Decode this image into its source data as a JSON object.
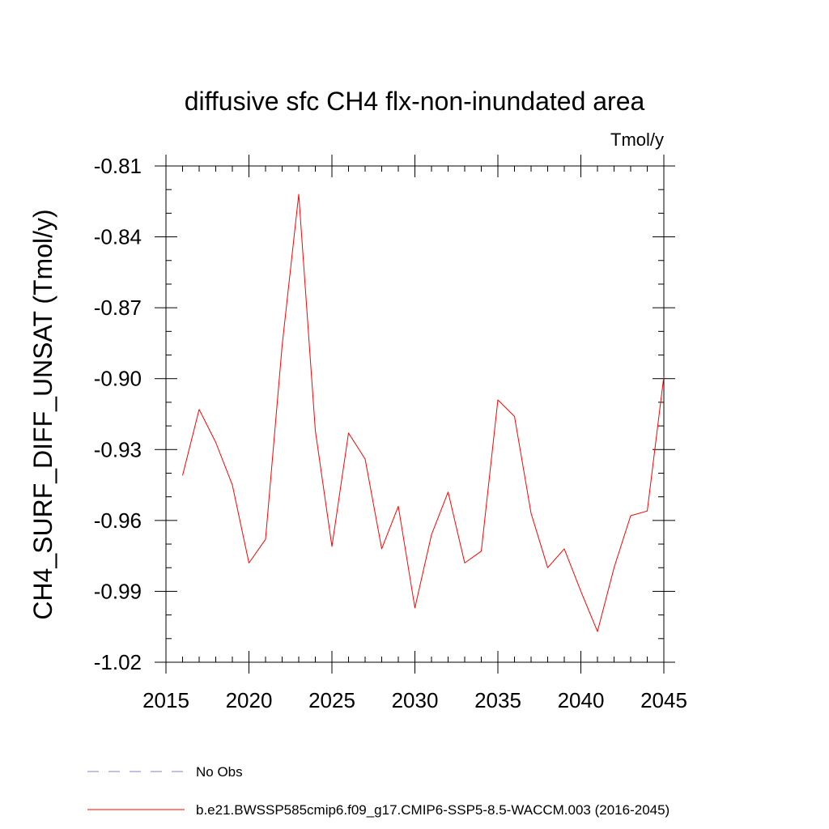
{
  "chart_data": {
    "type": "line",
    "title": "diffusive sfc CH4 flx-non-inundated area",
    "units_label": "Tmol/y",
    "ylabel": "CH4_SURF_DIFF_UNSAT  (Tmol/y)",
    "xlabel": "",
    "xlim": [
      2015,
      2045
    ],
    "ylim": [
      -1.02,
      -0.81
    ],
    "x_ticks": [
      2015,
      2020,
      2025,
      2030,
      2035,
      2040,
      2045
    ],
    "x_tick_labels": [
      "2015",
      "2020",
      "2025",
      "2030",
      "2035",
      "2040",
      "2045"
    ],
    "x_minor_step": 1,
    "y_ticks": [
      -1.02,
      -0.99,
      -0.96,
      -0.93,
      -0.9,
      -0.87,
      -0.84,
      -0.81
    ],
    "y_tick_labels": [
      "-1.02",
      "-0.99",
      "-0.96",
      "-0.93",
      "-0.90",
      "-0.87",
      "-0.84",
      "-0.81"
    ],
    "y_minor_step": 0.01,
    "grid": false,
    "series": [
      {
        "name": "b.e21.BWSSP585cmip6.f09_g17.CMIP6-SSP5-8.5-WACCM.003 (2016-2045)",
        "color": "#ff0000",
        "style": "solid",
        "x": [
          2016,
          2017,
          2018,
          2019,
          2020,
          2021,
          2022,
          2023,
          2024,
          2025,
          2026,
          2027,
          2028,
          2029,
          2030,
          2031,
          2032,
          2033,
          2034,
          2035,
          2036,
          2037,
          2038,
          2039,
          2040,
          2041,
          2042,
          2043,
          2044,
          2045
        ],
        "values": [
          -0.941,
          -0.913,
          -0.927,
          -0.945,
          -0.978,
          -0.968,
          -0.886,
          -0.822,
          -0.922,
          -0.971,
          -0.923,
          -0.934,
          -0.972,
          -0.954,
          -0.997,
          -0.966,
          -0.948,
          -0.978,
          -0.973,
          -0.909,
          -0.916,
          -0.957,
          -0.98,
          -0.972,
          -0.99,
          -1.007,
          -0.98,
          -0.958,
          -0.956,
          -0.899
        ]
      }
    ],
    "legend": [
      {
        "label": "No Obs",
        "color": "#8a80c8",
        "style": "dashed"
      },
      {
        "label": "b.e21.BWSSP585cmip6.f09_g17.CMIP6-SSP5-8.5-WACCM.003 (2016-2045)",
        "color": "#ff0000",
        "style": "solid"
      }
    ]
  }
}
